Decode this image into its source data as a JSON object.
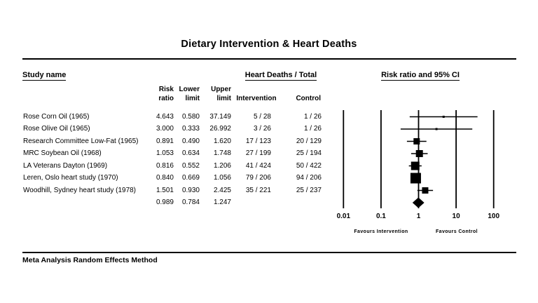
{
  "title": "Dietary Intervention & Heart Deaths",
  "table": {
    "header_study": "Study name",
    "header_group": "Heart Deaths / Total",
    "header_plot": "Risk ratio and 95% CI",
    "subheaders": {
      "risk": [
        "Risk",
        "ratio"
      ],
      "lower": [
        "Lower",
        "limit"
      ],
      "upper": [
        "Upper",
        "limit"
      ],
      "intervention": "Intervention",
      "control": "Control"
    },
    "rows": [
      {
        "study": "Rose Corn Oil (1965)",
        "rr": "4.643",
        "lo": "0.580",
        "hi": "37.149",
        "intervention": "5 / 28",
        "control": "1 / 26"
      },
      {
        "study": "Rose Olive Oil (1965)",
        "rr": "3.000",
        "lo": "0.333",
        "hi": "26.992",
        "intervention": "3 / 26",
        "control": "1 / 26"
      },
      {
        "study": "Research Committee Low-Fat (1965)",
        "rr": "0.891",
        "lo": "0.490",
        "hi": "1.620",
        "intervention": "17 / 123",
        "control": "20 / 129"
      },
      {
        "study": "MRC Soybean Oil (1968)",
        "rr": "1.053",
        "lo": "0.634",
        "hi": "1.748",
        "intervention": "27 / 199",
        "control": "25 / 194"
      },
      {
        "study": "LA Veterans Dayton (1969)",
        "rr": "0.816",
        "lo": "0.552",
        "hi": "1.206",
        "intervention": "41 / 424",
        "control": "50 / 422"
      },
      {
        "study": "Leren, Oslo heart study (1970)",
        "rr": "0.840",
        "lo": "0.669",
        "hi": "1.056",
        "intervention": "79 / 206",
        "control": "94 / 206"
      },
      {
        "study": "Woodhill, Sydney heart study (1978)",
        "rr": "1.501",
        "lo": "0.930",
        "hi": "2.425",
        "intervention": "35 / 221",
        "control": "25 / 237"
      },
      {
        "study": "",
        "rr": "0.989",
        "lo": "0.784",
        "hi": "1.247",
        "intervention": "",
        "control": ""
      }
    ]
  },
  "footer": "Meta Analysis Random Effects Method",
  "chart_data": {
    "type": "forest",
    "title": "Dietary Intervention & Heart Deaths",
    "x_scale": "log10",
    "x_ticks": [
      0.01,
      0.1,
      1,
      10,
      100
    ],
    "x_tick_labels": [
      "0.01",
      "0.1",
      "1",
      "10",
      "100"
    ],
    "x_axis_annotations": {
      "left": "Favours Intervention",
      "right": "Favours Control"
    },
    "effect_measure": "Risk ratio",
    "model": "Random Effects",
    "studies": [
      {
        "name": "Rose Corn Oil (1965)",
        "rr": 4.643,
        "lo": 0.58,
        "hi": 37.149,
        "marker_size": 3
      },
      {
        "name": "Rose Olive Oil (1965)",
        "rr": 3.0,
        "lo": 0.333,
        "hi": 26.992,
        "marker_size": 3
      },
      {
        "name": "Research Committee Low-Fat (1965)",
        "rr": 0.891,
        "lo": 0.49,
        "hi": 1.62,
        "marker_size": 9
      },
      {
        "name": "MRC Soybean Oil (1968)",
        "rr": 1.053,
        "lo": 0.634,
        "hi": 1.748,
        "marker_size": 10
      },
      {
        "name": "LA Veterans Dayton (1969)",
        "rr": 0.816,
        "lo": 0.552,
        "hi": 1.206,
        "marker_size": 12
      },
      {
        "name": "Leren, Oslo heart study (1970)",
        "rr": 0.84,
        "lo": 0.669,
        "hi": 1.056,
        "marker_size": 15
      },
      {
        "name": "Woodhill, Sydney heart study (1978)",
        "rr": 1.501,
        "lo": 0.93,
        "hi": 2.425,
        "marker_size": 9
      }
    ],
    "summary": {
      "rr": 0.989,
      "lo": 0.784,
      "hi": 1.247
    }
  }
}
